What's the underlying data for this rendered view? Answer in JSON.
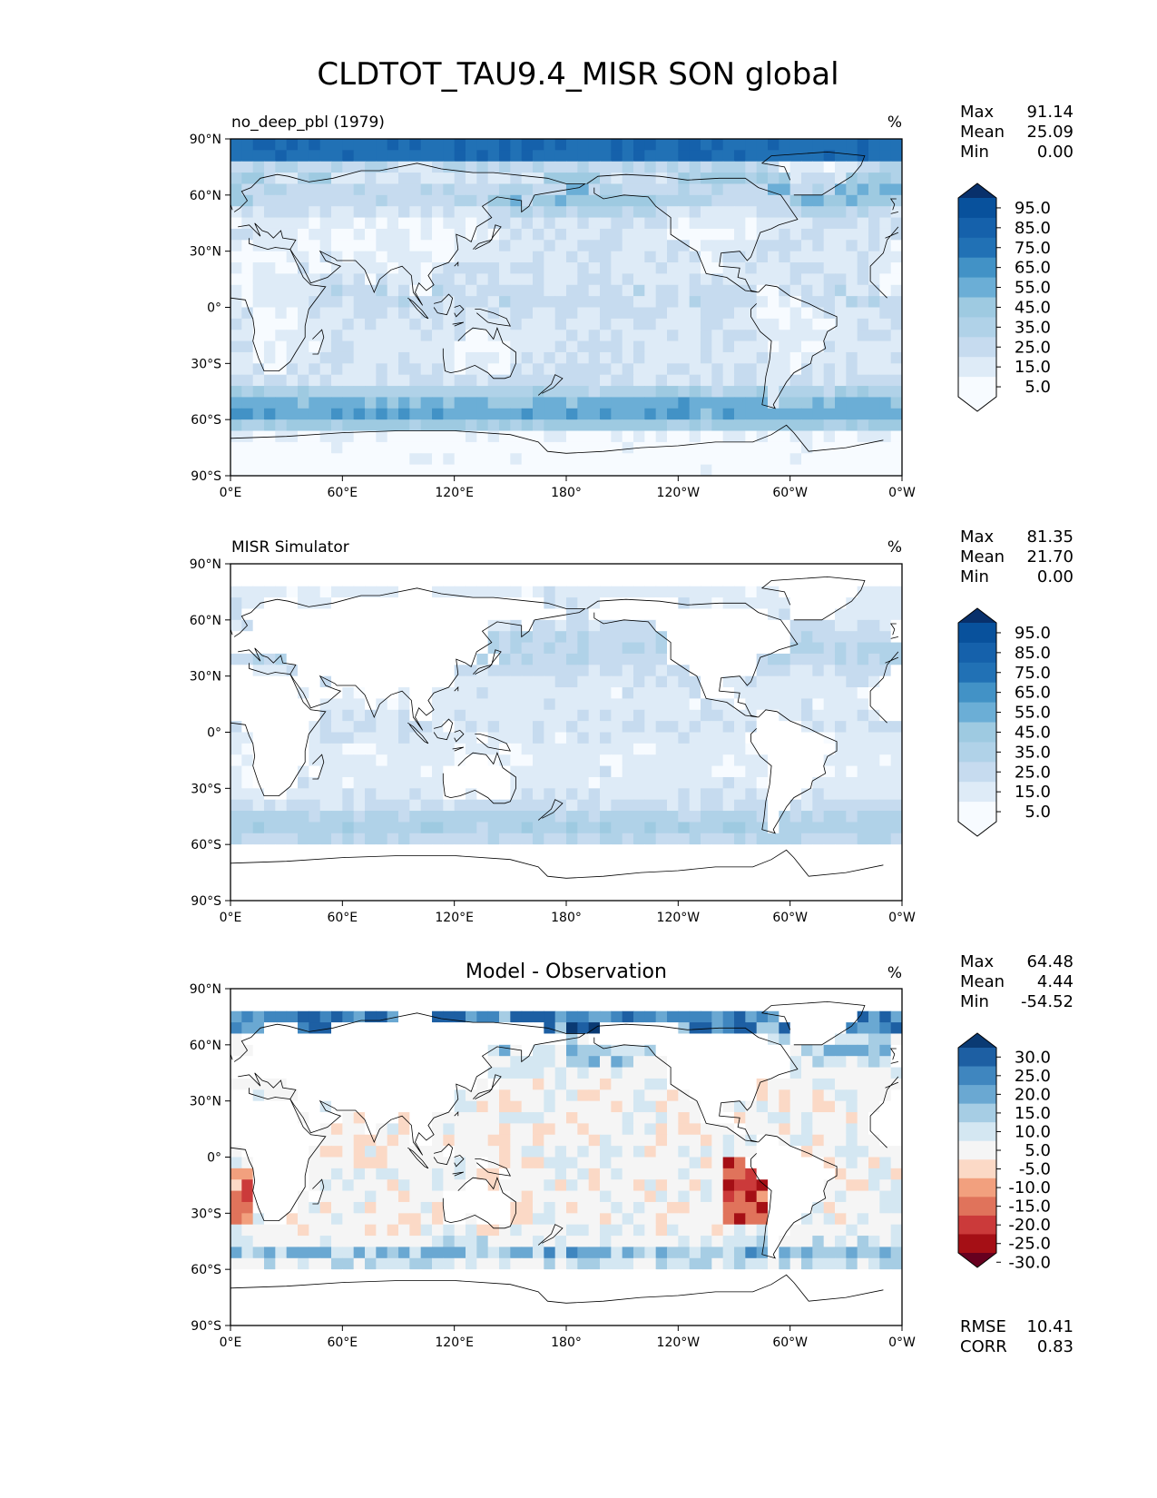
{
  "figure": {
    "title": "CLDTOT_TAU9.4_MISR SON global"
  },
  "palettes": {
    "sequential": [
      "#f7fbff",
      "#deebf7",
      "#c6dbef",
      "#b0d2e8",
      "#9ecae1",
      "#6baed6",
      "#4292c6",
      "#2171b5",
      "#1561ab",
      "#08519c",
      "#08306b"
    ],
    "diverging": [
      "#67001f",
      "#a50f15",
      "#cb3a3a",
      "#e0735b",
      "#f2a07e",
      "#fbd9c6",
      "#f5f5f5",
      "#d4e7f2",
      "#a6cde4",
      "#6aa8d2",
      "#3f86bf",
      "#1d5fa3",
      "#0a3a73"
    ],
    "land": "#ffffff",
    "coast": "#000000"
  },
  "chart_data": [
    {
      "type": "heatmap",
      "title": "no_deep_pbl (1979)",
      "units": "%",
      "stats": [
        {
          "label": "Max",
          "value": "91.14"
        },
        {
          "label": "Mean",
          "value": "25.09"
        },
        {
          "label": "Min",
          "value": "0.00"
        }
      ],
      "colorbar": {
        "ticks": [
          "95.0",
          "85.0",
          "75.0",
          "65.0",
          "55.0",
          "45.0",
          "35.0",
          "25.0",
          "15.0",
          "5.0"
        ],
        "extend": "both"
      },
      "xticks": [
        "0°E",
        "60°E",
        "120°E",
        "180°",
        "120°W",
        "60°W",
        "0°W"
      ],
      "yticks": [
        "90°N",
        "60°N",
        "30°N",
        "0°",
        "30°S",
        "60°S",
        "90°S"
      ],
      "xlim": [
        0,
        360
      ],
      "ylim": [
        -90,
        90
      ],
      "field": "model"
    },
    {
      "type": "heatmap",
      "title": "MISR Simulator",
      "units": "%",
      "stats": [
        {
          "label": "Max",
          "value": "81.35"
        },
        {
          "label": "Mean",
          "value": "21.70"
        },
        {
          "label": "Min",
          "value": "0.00"
        }
      ],
      "colorbar": {
        "ticks": [
          "95.0",
          "85.0",
          "75.0",
          "65.0",
          "55.0",
          "45.0",
          "35.0",
          "25.0",
          "15.0",
          "5.0"
        ],
        "extend": "both"
      },
      "xticks": [
        "0°E",
        "60°E",
        "120°E",
        "180°",
        "120°W",
        "60°W",
        "0°W"
      ],
      "yticks": [
        "90°N",
        "60°N",
        "30°N",
        "0°",
        "30°S",
        "60°S",
        "90°S"
      ],
      "xlim": [
        0,
        360
      ],
      "ylim": [
        -90,
        90
      ],
      "field": "obs"
    },
    {
      "type": "heatmap",
      "title": "Model - Observation",
      "units": "%",
      "stats": [
        {
          "label": "Max",
          "value": "64.48"
        },
        {
          "label": "Mean",
          "value": "4.44"
        },
        {
          "label": "Min",
          "value": "-54.52"
        }
      ],
      "colorbar": {
        "ticks": [
          "30.0",
          "25.0",
          "20.0",
          "15.0",
          "10.0",
          "5.0",
          "-5.0",
          "-10.0",
          "-15.0",
          "-20.0",
          "-25.0",
          "-30.0"
        ],
        "extend": "both"
      },
      "xticks": [
        "0°E",
        "60°E",
        "120°E",
        "180°",
        "120°W",
        "60°W",
        "0°W"
      ],
      "yticks": [
        "90°N",
        "60°N",
        "30°N",
        "0°",
        "30°S",
        "60°S",
        "90°S"
      ],
      "xlim": [
        0,
        360
      ],
      "ylim": [
        -90,
        90
      ],
      "field": "diff",
      "metrics": [
        {
          "label": "RMSE",
          "value": "10.41"
        },
        {
          "label": "CORR",
          "value": "0.83"
        }
      ]
    }
  ]
}
